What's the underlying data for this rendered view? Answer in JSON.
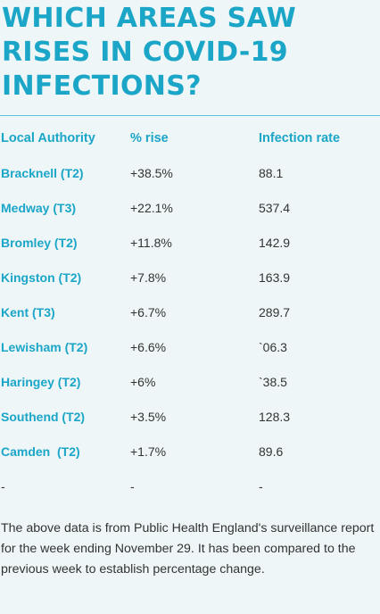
{
  "title": "WHICH AREAS SAW RISES IN COVID-19 INFECTIONS?",
  "table": {
    "headers": [
      "Local Authority",
      "% rise",
      "Infection rate"
    ],
    "rows": [
      [
        "Bracknell (T2)",
        "+38.5%",
        "88.1"
      ],
      [
        "Medway (T3)",
        "+22.1%",
        "537.4"
      ],
      [
        "Bromley (T2)",
        "+11.8%",
        "142.9"
      ],
      [
        "Kingston (T2)",
        "+7.8%",
        "163.9"
      ],
      [
        "Kent (T3)",
        "+6.7%",
        "289.7"
      ],
      [
        "Lewisham (T2)",
        "+6.6%",
        "`06.3"
      ],
      [
        "Haringey (T2)",
        "+6%",
        "`38.5"
      ],
      [
        "Southend (T2)",
        "+3.5%",
        "128.3"
      ],
      [
        "Camden  (T2)",
        "+1.7%",
        "89.6"
      ],
      [
        "-",
        "-",
        "-"
      ]
    ]
  },
  "note": "The above data is from Public Health England's surveillance report for the week ending November 29. It has been compared to the previous week to establish percentage change.",
  "colors": {
    "accent": "#1ba6c8",
    "background": "#eef6f8",
    "text": "#333333"
  }
}
